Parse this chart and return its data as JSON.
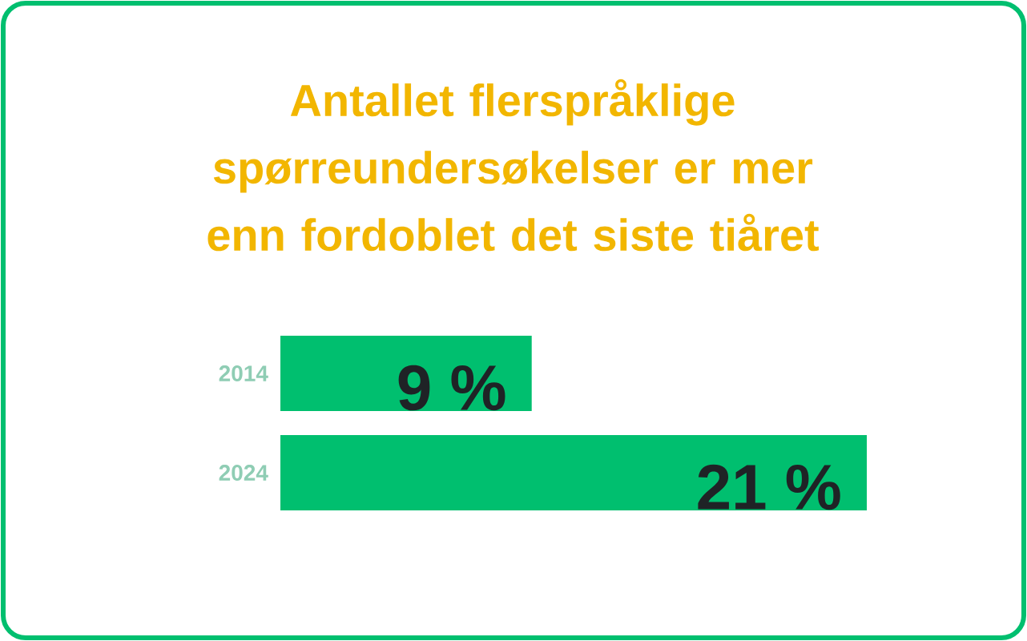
{
  "chart_data": {
    "type": "bar",
    "orientation": "horizontal",
    "title": "Antallet flerspråklige spørreundersøkelser er mer enn fordoblet det siste tiåret",
    "categories": [
      "2014",
      "2024"
    ],
    "values": [
      9,
      21
    ],
    "value_labels": [
      "9 %",
      "21 %"
    ],
    "color": "#00bf6f"
  }
}
